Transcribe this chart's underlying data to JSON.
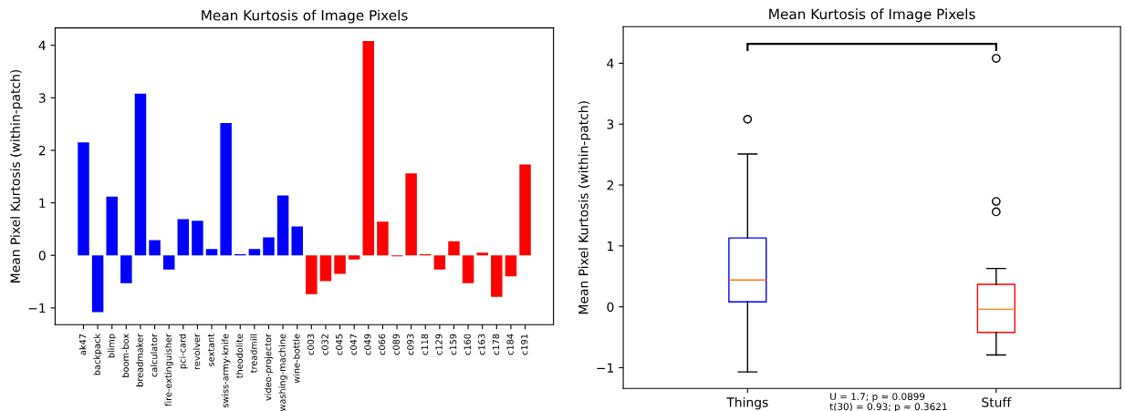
{
  "chart_data": [
    {
      "type": "bar",
      "title": "Mean Kurtosis of Image Pixels",
      "ylabel": "Mean Pixel Kurtosis (within-patch)",
      "categories": [
        "ak47",
        "backpack",
        "blimp",
        "boom-box",
        "breadmaker",
        "calculator",
        "fire-extinguisher",
        "pci-card",
        "revolver",
        "sextant",
        "swiss-army-knife",
        "theodolite",
        "treadmill",
        "video-projector",
        "washing-machine",
        "wine-bottle",
        "c003",
        "c032",
        "c045",
        "c047",
        "c049",
        "c066",
        "c089",
        "c093",
        "c118",
        "c129",
        "c159",
        "c160",
        "c163",
        "c178",
        "c184",
        "c191"
      ],
      "values": [
        2.15,
        -1.08,
        1.12,
        -0.53,
        3.08,
        0.29,
        -0.27,
        0.69,
        0.66,
        0.12,
        2.52,
        0.02,
        0.12,
        0.34,
        1.14,
        0.55,
        -0.74,
        -0.49,
        -0.35,
        -0.08,
        4.08,
        0.64,
        -0.02,
        1.56,
        0.02,
        -0.27,
        0.27,
        -0.53,
        0.05,
        -0.79,
        -0.4,
        1.73
      ],
      "colors": [
        "#0000ff",
        "#0000ff",
        "#0000ff",
        "#0000ff",
        "#0000ff",
        "#0000ff",
        "#0000ff",
        "#0000ff",
        "#0000ff",
        "#0000ff",
        "#0000ff",
        "#0000ff",
        "#0000ff",
        "#0000ff",
        "#0000ff",
        "#0000ff",
        "#ff0000",
        "#ff0000",
        "#ff0000",
        "#ff0000",
        "#ff0000",
        "#ff0000",
        "#ff0000",
        "#ff0000",
        "#ff0000",
        "#ff0000",
        "#ff0000",
        "#ff0000",
        "#ff0000",
        "#ff0000",
        "#ff0000",
        "#ff0000"
      ],
      "ylim": [
        -1.32,
        4.33
      ],
      "yticks": [
        {
          "value": -1,
          "label": "−1"
        },
        0,
        1,
        2,
        3,
        4
      ],
      "grid": false,
      "legend": false
    },
    {
      "type": "box",
      "title": "Mean Kurtosis of Image Pixels",
      "ylabel": "Mean Pixel Kurtosis (within-patch)",
      "categories": [
        "Things",
        "Stuff"
      ],
      "boxes": [
        {
          "low": -1.07,
          "q1": 0.08,
          "median": 0.44,
          "q3": 1.13,
          "high": 2.51,
          "outliers": [
            3.08
          ]
        },
        {
          "low": -0.79,
          "q1": -0.42,
          "median": -0.04,
          "q3": 0.37,
          "high": 0.63,
          "outliers": [
            4.08,
            1.73,
            1.56
          ]
        }
      ],
      "colors": [
        "#0000ff",
        "#ff0000"
      ],
      "ylim": [
        -1.34,
        4.6
      ],
      "yticks": [
        {
          "value": -1,
          "label": "−1"
        },
        0,
        1,
        2,
        3,
        4
      ],
      "grid": false,
      "legend": false,
      "annotations": [
        "U = 1.7; p ≈ 0.0899",
        "t(30) = 0.93; p ≈ 0.3621"
      ]
    }
  ]
}
